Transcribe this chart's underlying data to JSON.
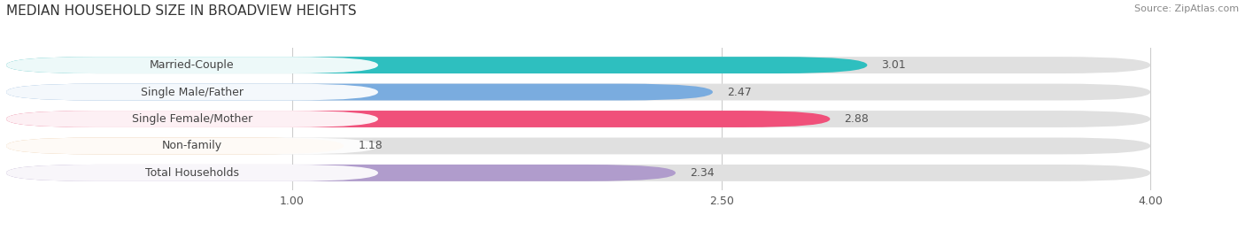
{
  "title": "MEDIAN HOUSEHOLD SIZE IN BROADVIEW HEIGHTS",
  "source": "Source: ZipAtlas.com",
  "categories": [
    "Married-Couple",
    "Single Male/Father",
    "Single Female/Mother",
    "Non-family",
    "Total Households"
  ],
  "values": [
    3.01,
    2.47,
    2.88,
    1.18,
    2.34
  ],
  "bar_colors": [
    "#2ebfbf",
    "#7aacdf",
    "#f0507a",
    "#f5c896",
    "#b09ccc"
  ],
  "background_color": "#ffffff",
  "bar_bg_color": "#e8e8e8",
  "xlim_data": [
    0.0,
    4.2
  ],
  "xstart": 0.0,
  "xend": 4.0,
  "xticks": [
    1.0,
    2.5,
    4.0
  ],
  "xtick_labels": [
    "1.00",
    "2.50",
    "4.00"
  ],
  "title_fontsize": 11,
  "source_fontsize": 8,
  "label_fontsize": 9,
  "value_fontsize": 9
}
